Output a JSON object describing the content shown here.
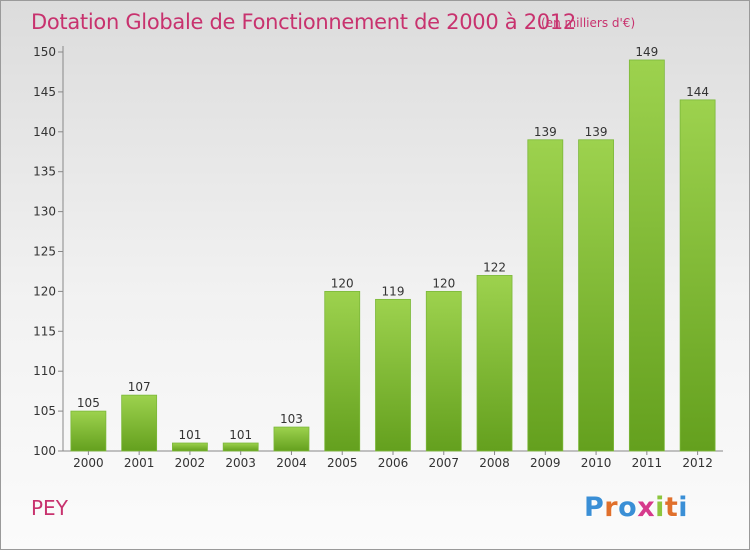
{
  "chart_title": "Dotation Globale de Fonctionnement de 2000 à 2012",
  "chart_unit": "(en milliers d'€)",
  "place_name": "PEY",
  "logo_text": "Proxiti",
  "colors": {
    "title": "#c8326e",
    "bar_light": "#9dd24e",
    "bar_dark": "#64a01e",
    "logo_letters": [
      "#3a8fd6",
      "#e0702c",
      "#3a8fd6",
      "#d63a8c",
      "#8cc63e",
      "#e0702c",
      "#3a8fd6"
    ]
  },
  "chart_data": {
    "type": "bar",
    "title": "Dotation Globale de Fonctionnement de 2000 à 2012",
    "subtitle": "(en milliers d'€)",
    "xlabel": "",
    "ylabel": "",
    "categories": [
      "2000",
      "2001",
      "2002",
      "2003",
      "2004",
      "2005",
      "2006",
      "2007",
      "2008",
      "2009",
      "2010",
      "2011",
      "2012"
    ],
    "values": [
      105,
      107,
      101,
      101,
      103,
      120,
      119,
      120,
      122,
      139,
      139,
      149,
      144
    ],
    "ylim": [
      100,
      150
    ],
    "yticks": [
      100,
      105,
      110,
      115,
      120,
      125,
      130,
      135,
      140,
      145,
      150
    ],
    "grid": false,
    "data_labels": true
  }
}
